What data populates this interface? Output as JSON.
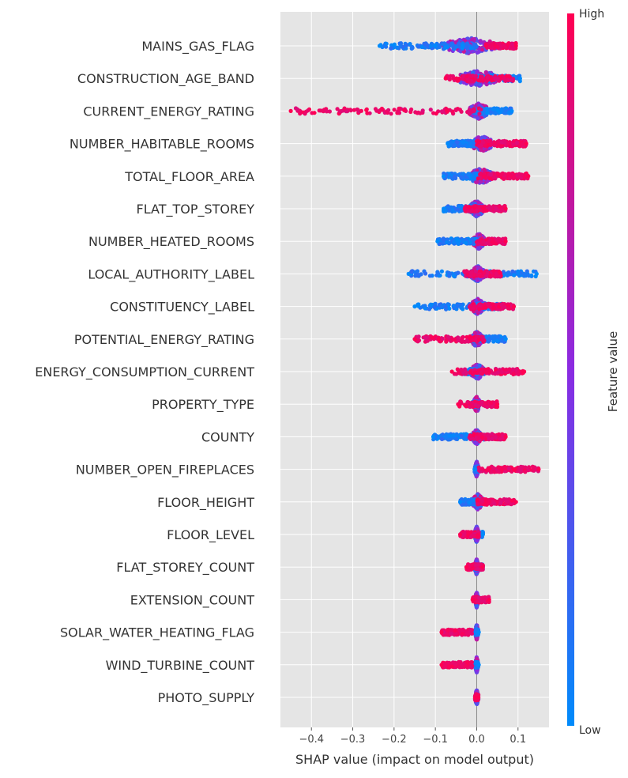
{
  "chart_data": {
    "type": "scatter",
    "subtype": "shap-beeswarm-summary",
    "xlabel": "SHAP value (impact on model output)",
    "xlim": [
      -0.475,
      0.175
    ],
    "xticks": [
      -0.4,
      -0.3,
      -0.2,
      -0.1,
      0.0,
      0.1
    ],
    "xtick_labels": [
      "−0.4",
      "−0.3",
      "−0.2",
      "−0.1",
      "0.0",
      "0.1"
    ],
    "grid": true,
    "colorbar": {
      "label": "Feature value",
      "high_label": "High",
      "low_label": "Low",
      "high_color": "#ff0052",
      "mid_color": "#8a2be2",
      "low_color": "#008bfb"
    },
    "features": [
      {
        "name": "MAINS_GAS_FLAG",
        "min": -0.235,
        "max": 0.095,
        "low_range": [
          -0.235,
          0.0
        ],
        "high_range": [
          0.02,
          0.095
        ],
        "core": [
          -0.09,
          0.06
        ]
      },
      {
        "name": "CONSTRUCTION_AGE_BAND",
        "min": -0.075,
        "max": 0.105,
        "low_range": [
          -0.02,
          0.105
        ],
        "high_range": [
          -0.075,
          0.09
        ],
        "core": [
          -0.055,
          0.065
        ]
      },
      {
        "name": "CURRENT_ENERGY_RATING",
        "min": -0.45,
        "max": 0.085,
        "low_range": [
          -0.01,
          0.085
        ],
        "high_range": [
          -0.45,
          0.02
        ],
        "core": [
          -0.02,
          0.03
        ]
      },
      {
        "name": "NUMBER_HABITABLE_ROOMS",
        "min": -0.07,
        "max": 0.12,
        "low_range": [
          -0.07,
          0.0
        ],
        "high_range": [
          0.0,
          0.12
        ],
        "core": [
          -0.015,
          0.04
        ]
      },
      {
        "name": "TOTAL_FLOOR_AREA",
        "min": -0.08,
        "max": 0.125,
        "low_range": [
          -0.08,
          0.01
        ],
        "high_range": [
          0.0,
          0.125
        ],
        "core": [
          -0.02,
          0.04
        ]
      },
      {
        "name": "FLAT_TOP_STOREY",
        "min": -0.08,
        "max": 0.07,
        "low_range": [
          -0.08,
          0.02
        ],
        "high_range": [
          -0.03,
          0.07
        ],
        "core": [
          -0.02,
          0.02
        ]
      },
      {
        "name": "NUMBER_HEATED_ROOMS",
        "min": -0.095,
        "max": 0.07,
        "low_range": [
          -0.095,
          0.0
        ],
        "high_range": [
          0.0,
          0.07
        ],
        "core": [
          -0.01,
          0.02
        ]
      },
      {
        "name": "LOCAL_AUTHORITY_LABEL",
        "min": -0.165,
        "max": 0.145,
        "low_range": [
          -0.165,
          0.145
        ],
        "high_range": [
          -0.03,
          0.06
        ],
        "core": [
          -0.015,
          0.02
        ]
      },
      {
        "name": "CONSTITUENCY_LABEL",
        "min": -0.15,
        "max": 0.09,
        "low_range": [
          -0.15,
          0.06
        ],
        "high_range": [
          -0.02,
          0.09
        ],
        "core": [
          -0.015,
          0.02
        ]
      },
      {
        "name": "POTENTIAL_ENERGY_RATING",
        "min": -0.15,
        "max": 0.07,
        "low_range": [
          -0.02,
          0.07
        ],
        "high_range": [
          -0.15,
          0.02
        ],
        "core": [
          -0.015,
          0.015
        ]
      },
      {
        "name": "ENERGY_CONSUMPTION_CURRENT",
        "min": -0.06,
        "max": 0.115,
        "low_range": [
          -0.03,
          0.02
        ],
        "high_range": [
          -0.06,
          0.115
        ],
        "core": [
          -0.015,
          0.02
        ]
      },
      {
        "name": "PROPERTY_TYPE",
        "min": -0.045,
        "max": 0.05,
        "low_range": [
          -0.01,
          0.005
        ],
        "high_range": [
          -0.045,
          0.05
        ],
        "core": [
          -0.008,
          0.008
        ]
      },
      {
        "name": "COUNTY",
        "min": -0.105,
        "max": 0.07,
        "low_range": [
          -0.105,
          0.02
        ],
        "high_range": [
          -0.02,
          0.07
        ],
        "core": [
          -0.01,
          0.01
        ]
      },
      {
        "name": "NUMBER_OPEN_FIREPLACES",
        "min": -0.005,
        "max": 0.15,
        "low_range": [
          -0.005,
          0.005
        ],
        "high_range": [
          0.005,
          0.15
        ],
        "core": [
          -0.004,
          0.004
        ]
      },
      {
        "name": "FLOOR_HEIGHT",
        "min": -0.04,
        "max": 0.095,
        "low_range": [
          -0.04,
          0.01
        ],
        "high_range": [
          0.0,
          0.095
        ],
        "core": [
          -0.01,
          0.015
        ]
      },
      {
        "name": "FLOOR_LEVEL",
        "min": -0.04,
        "max": 0.015,
        "low_range": [
          -0.005,
          0.015
        ],
        "high_range": [
          -0.04,
          0.005
        ],
        "core": [
          -0.005,
          0.005
        ]
      },
      {
        "name": "FLAT_STOREY_COUNT",
        "min": -0.025,
        "max": 0.015,
        "low_range": [
          -0.005,
          0.015
        ],
        "high_range": [
          -0.025,
          0.015
        ],
        "core": [
          -0.004,
          0.004
        ]
      },
      {
        "name": "EXTENSION_COUNT",
        "min": -0.01,
        "max": 0.03,
        "low_range": [
          -0.005,
          0.005
        ],
        "high_range": [
          -0.01,
          0.03
        ],
        "core": [
          -0.003,
          0.003
        ]
      },
      {
        "name": "SOLAR_WATER_HEATING_FLAG",
        "min": -0.085,
        "max": 0.005,
        "low_range": [
          -0.004,
          0.004
        ],
        "high_range": [
          -0.085,
          -0.01
        ],
        "core": [
          -0.003,
          0.003
        ]
      },
      {
        "name": "WIND_TURBINE_COUNT",
        "min": -0.085,
        "max": 0.005,
        "low_range": [
          -0.004,
          0.004
        ],
        "high_range": [
          -0.085,
          -0.01
        ],
        "core": [
          -0.003,
          0.003
        ]
      },
      {
        "name": "PHOTO_SUPPLY",
        "min": -0.004,
        "max": 0.004,
        "low_range": [
          -0.004,
          0.004
        ],
        "high_range": [
          -0.004,
          0.004
        ],
        "core": [
          -0.003,
          0.003
        ]
      }
    ]
  }
}
